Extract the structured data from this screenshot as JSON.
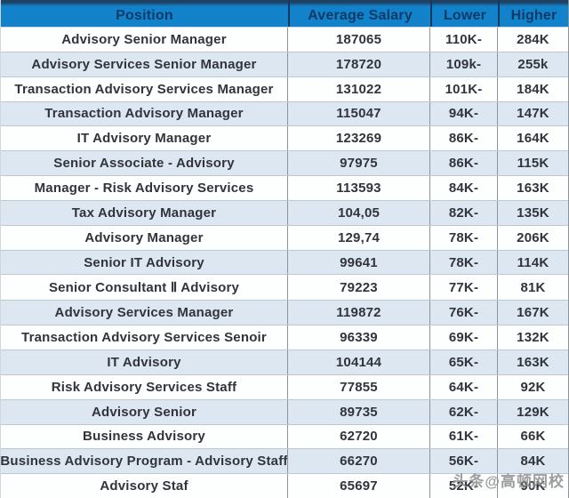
{
  "chart_data": {
    "type": "table",
    "title": "",
    "columns": [
      "Position",
      "Average Salary",
      "Lower",
      "Higher"
    ],
    "rows": [
      [
        "Advisory Senior Manager",
        "187065",
        "110K-",
        "284K"
      ],
      [
        "Advisory Services Senior Manager",
        "178720",
        "109k-",
        "255k"
      ],
      [
        "Transaction Advisory Services Manager",
        "131022",
        "101K-",
        "184K"
      ],
      [
        "Transaction Advisory Manager",
        "115047",
        "94K-",
        "147K"
      ],
      [
        "IT Advisory Manager",
        "123269",
        "86K-",
        "164K"
      ],
      [
        "Senior Associate - Advisory",
        "97975",
        "86K-",
        "115K"
      ],
      [
        "Manager - Risk Advisory Services",
        "113593",
        "84K-",
        "163K"
      ],
      [
        "Tax Advisory Manager",
        "104,05",
        "82K-",
        "135K"
      ],
      [
        "Advisory Manager",
        "129,74",
        "78K-",
        "206K"
      ],
      [
        "Senior IT Advisory",
        "99641",
        "78K-",
        "114K"
      ],
      [
        "Senior Consultant Ⅱ Advisory",
        "79223",
        "77K-",
        "81K"
      ],
      [
        "Advisory Services Manager",
        "119872",
        "76K-",
        "167K"
      ],
      [
        "Transaction Advisory Services Senoir",
        "96339",
        "69K-",
        "132K"
      ],
      [
        "IT Advisory",
        "104144",
        "65K-",
        "163K"
      ],
      [
        "Risk Advisory Services Staff",
        "77855",
        "64K-",
        "92K"
      ],
      [
        "Advisory Senior",
        "89735",
        "62K-",
        "129K"
      ],
      [
        "Business Advisory",
        "62720",
        "61K-",
        "66K"
      ],
      [
        "Business Advisory Program - Advisory Staff",
        "66270",
        "56K-",
        "84K"
      ],
      [
        "Advisory Staf",
        "65697",
        "52K-",
        "90K"
      ]
    ]
  },
  "watermark": {
    "text": "头条@高顿网校"
  },
  "colors": {
    "header_bg": "#1283CB",
    "header_strip": "#1E4164",
    "header_divider": "#13395E",
    "header_text": "#0D3A66",
    "row_bg": "#FDFEFE",
    "row_alt_bg": "#DCE7F1",
    "cell_text": "#31343B",
    "v_border": "#8C939B",
    "h_border": "#BCC8D4"
  }
}
